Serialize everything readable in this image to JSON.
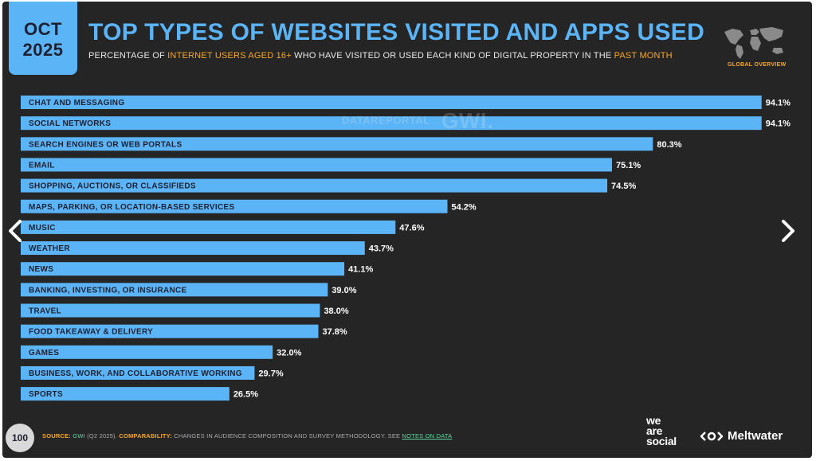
{
  "header": {
    "month": "OCT",
    "year": "2025",
    "title": "TOP TYPES OF WEBSITES VISITED AND APPS USED",
    "subtitle_parts": [
      "PERCENTAGE OF ",
      "INTERNET USERS AGED 16+",
      " WHO HAVE VISITED OR USED EACH KIND OF DIGITAL PROPERTY IN THE ",
      "PAST MONTH"
    ],
    "region_label": "GLOBAL OVERVIEW"
  },
  "watermark": {
    "brand": "DATAREPORTAL",
    "partner": "GWI."
  },
  "chart_data": {
    "type": "bar",
    "orientation": "horizontal",
    "title": "TOP TYPES OF WEBSITES VISITED AND APPS USED",
    "xlabel": "",
    "ylabel": "",
    "xlim": [
      0,
      100
    ],
    "value_suffix": "%",
    "categories": [
      "CHAT AND MESSAGING",
      "SOCIAL NETWORKS",
      "SEARCH ENGINES OR WEB PORTALS",
      "EMAIL",
      "SHOPPING, AUCTIONS, OR CLASSIFIEDS",
      "MAPS, PARKING, OR LOCATION-BASED SERVICES",
      "MUSIC",
      "WEATHER",
      "NEWS",
      "BANKING, INVESTING, OR INSURANCE",
      "TRAVEL",
      "FOOD TAKEAWAY & DELIVERY",
      "GAMES",
      "BUSINESS, WORK, AND COLLABORATIVE WORKING",
      "SPORTS"
    ],
    "values": [
      94.1,
      94.1,
      80.3,
      75.1,
      74.5,
      54.2,
      47.6,
      43.7,
      41.1,
      39.0,
      38.0,
      37.8,
      32.0,
      29.7,
      26.5
    ],
    "labels": [
      "94.1%",
      "94.1%",
      "80.3%",
      "75.1%",
      "74.5%",
      "54.2%",
      "47.6%",
      "43.7%",
      "41.1%",
      "39.0%",
      "38.0%",
      "37.8%",
      "32.0%",
      "29.7%",
      "26.5%"
    ],
    "bar_color": "#5bb4f5"
  },
  "footer": {
    "page_number": "100",
    "source_label": "SOURCE:",
    "source_name": "GWI",
    "source_detail": " (Q2 2025). ",
    "comparability_label": "COMPARABILITY:",
    "comparability_text": " CHANGES IN AUDIENCE COMPOSITION AND SURVEY METHODOLOGY. SEE ",
    "notes_link": "NOTES ON DATA",
    "logo_we": "we",
    "logo_are": "are",
    "logo_social": "social",
    "logo_meltwater": "Meltwater"
  },
  "colors": {
    "background": "#252526",
    "accent_blue": "#5bb4f5",
    "accent_orange": "#f5a623",
    "link_green": "#62d2a2"
  }
}
